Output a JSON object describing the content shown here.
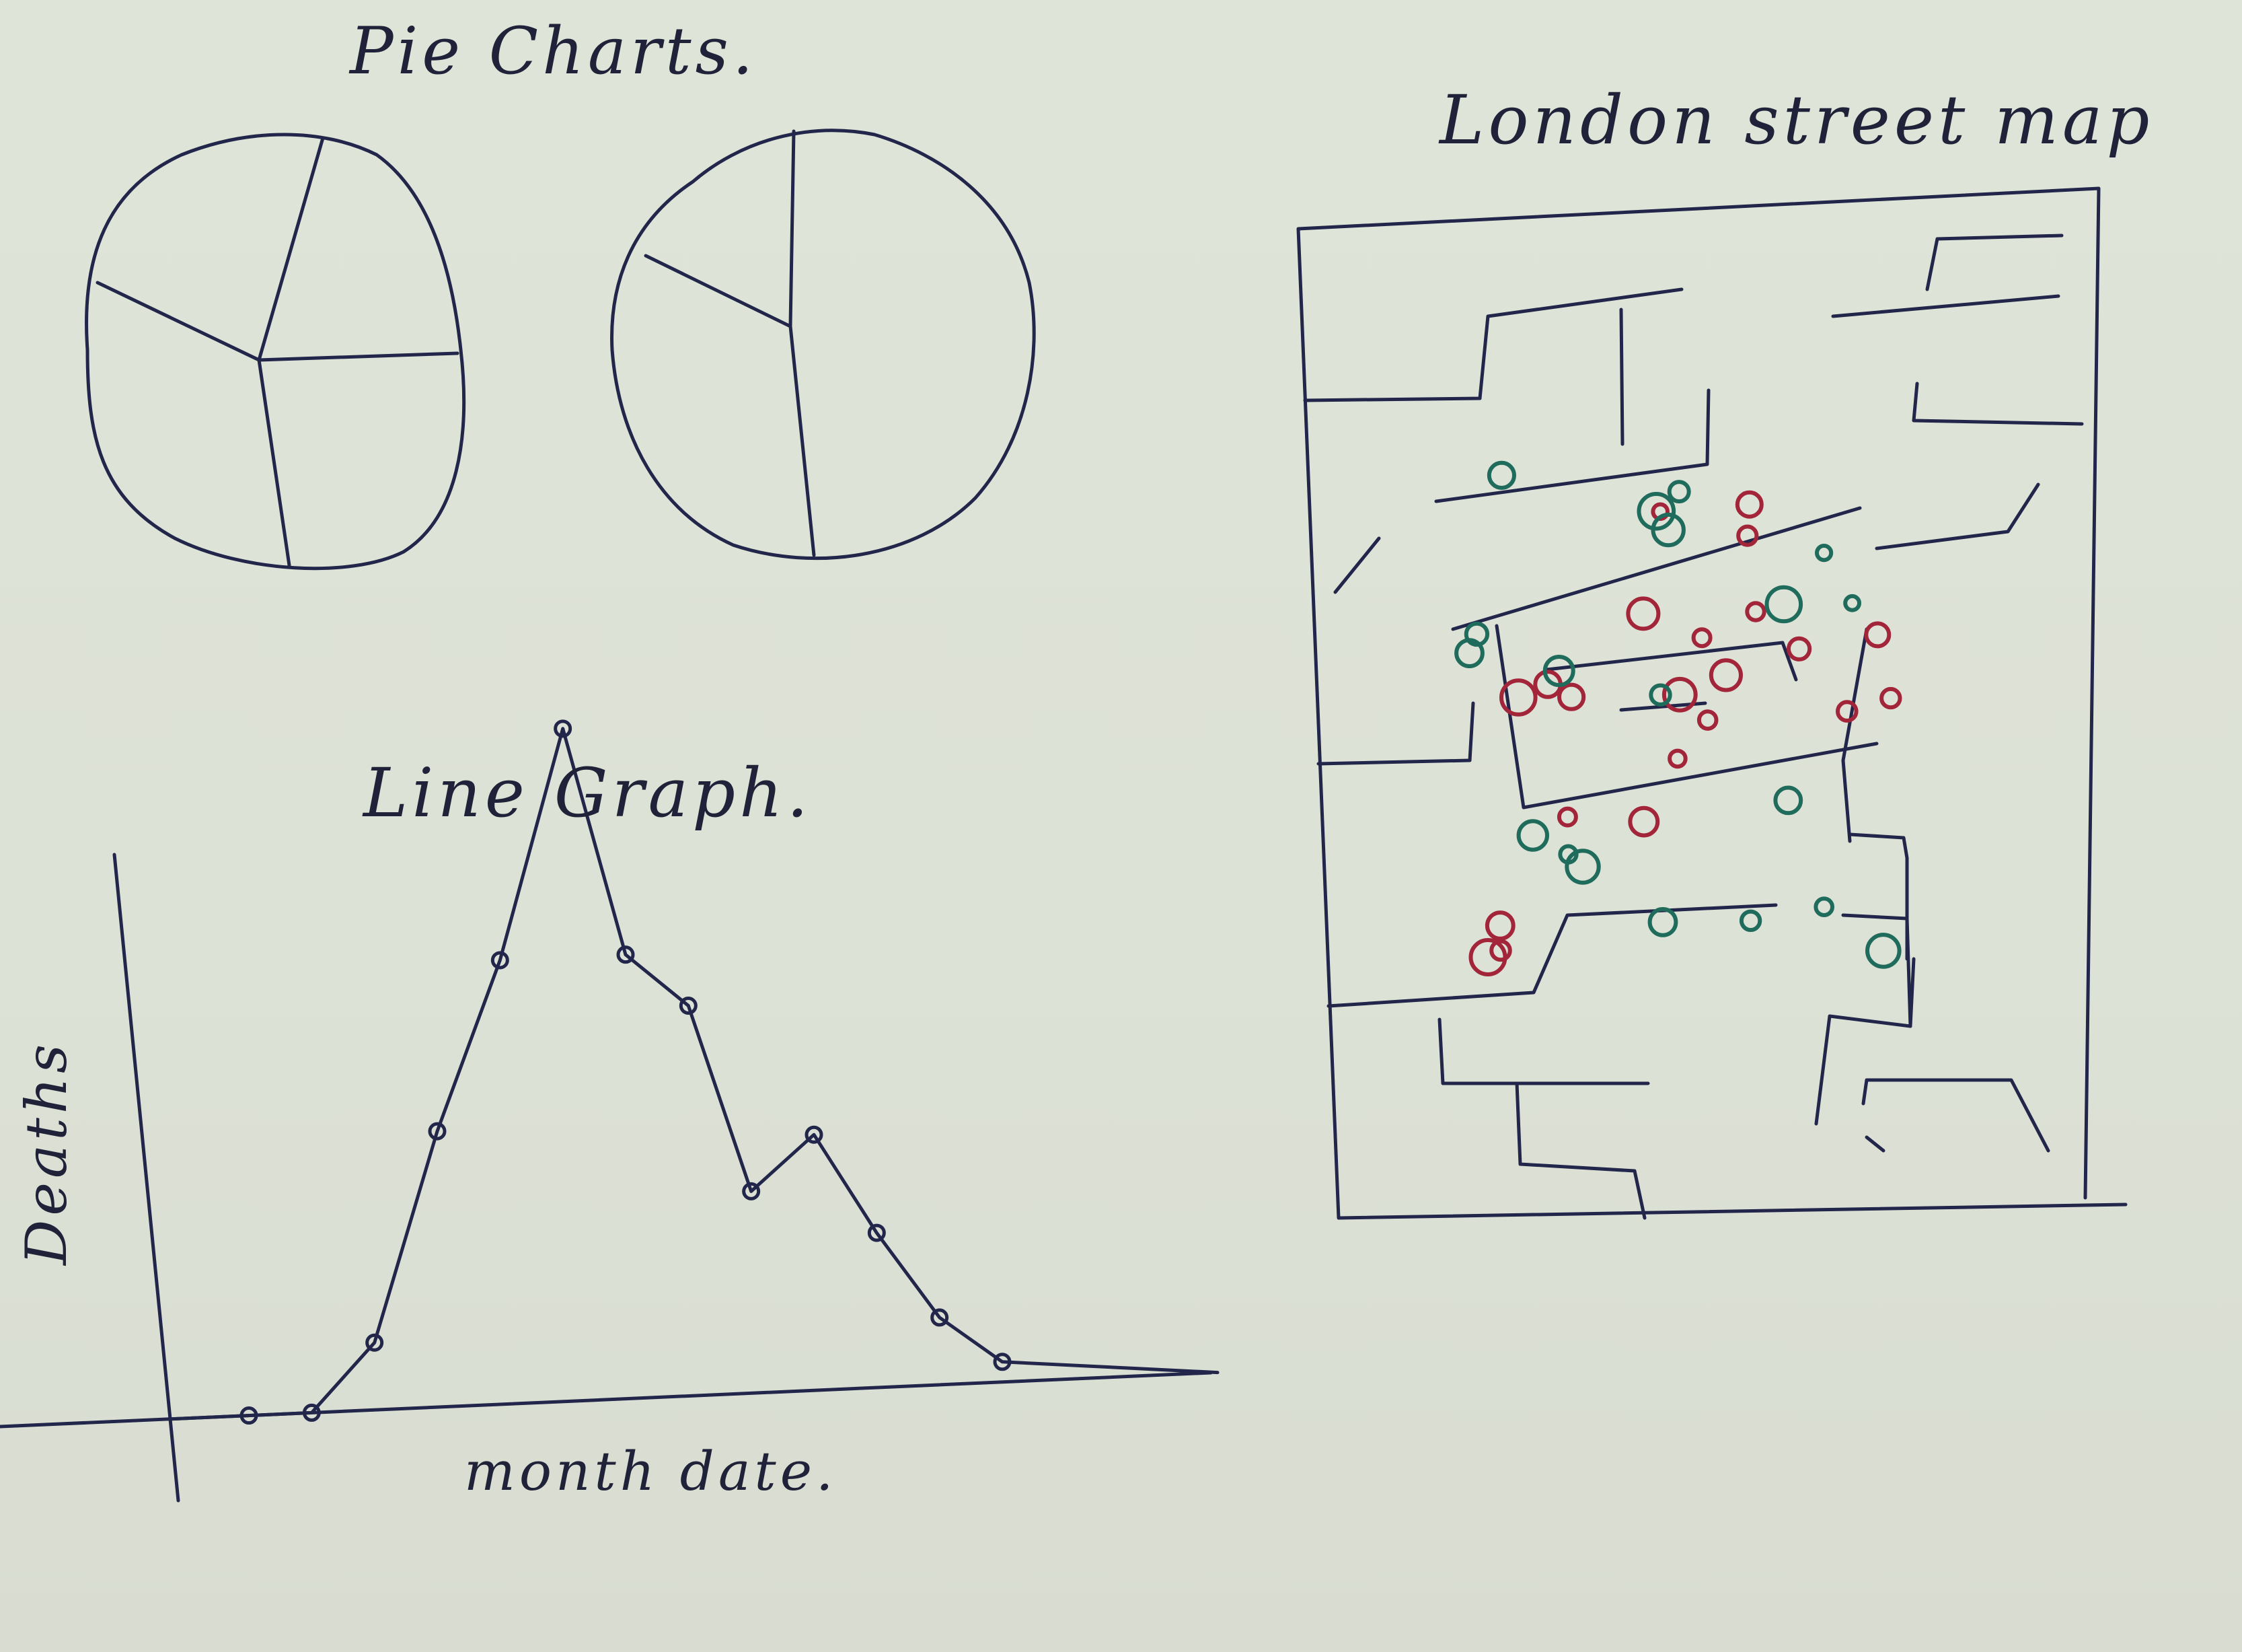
{
  "sketch": {
    "pie_title": "Pie Charts.",
    "line_title": "Line Graph.",
    "map_title": "London street map",
    "line_xlabel": "month date.",
    "line_ylabel": "Deaths"
  },
  "chart_data": [
    {
      "type": "pie",
      "title": "Pie Charts.",
      "slices": [
        0.34,
        0.26,
        0.22,
        0.18
      ]
    },
    {
      "type": "pie",
      "title": "Pie Charts.",
      "slices": [
        0.43,
        0.4,
        0.17
      ]
    },
    {
      "type": "line",
      "title": "Line Graph.",
      "xlabel": "month date.",
      "ylabel": "Deaths",
      "x": [
        1,
        2,
        3,
        4,
        5,
        6,
        7,
        8,
        9,
        10,
        11,
        12,
        13
      ],
      "y": [
        0,
        0,
        10,
        41,
        66,
        100,
        66,
        58,
        30,
        38,
        23,
        10,
        3
      ]
    }
  ],
  "map": {
    "legend_colors": {
      "red": "#a3253a",
      "green": "#1f6b5c"
    },
    "red_dots": 22,
    "green_dots": 19
  }
}
